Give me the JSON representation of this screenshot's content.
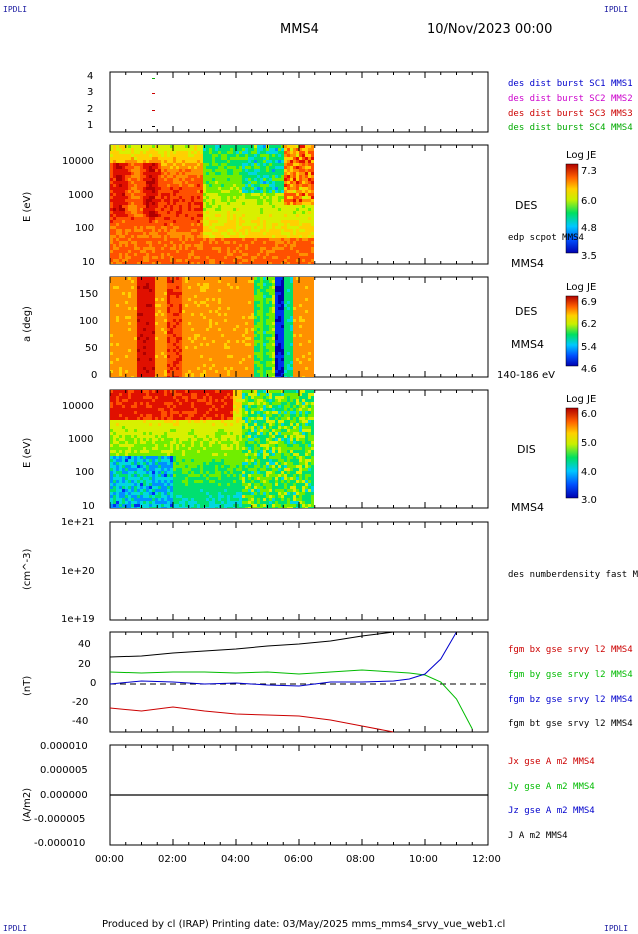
{
  "header": {
    "corner_tl": "IPDLI",
    "corner_tr": "IPDLI",
    "corner_bl": "IPDLI",
    "corner_br": "IPDLI",
    "spacecraft": "MMS4",
    "date": "10/Nov/2023 00:00"
  },
  "footer": {
    "text": "Produced by cl (IRAP)   Printing date: 03/May/2025   mms_mms4_srvy_vue_web1.cl"
  },
  "chart_data": [
    {
      "type": "scatter",
      "id": "burst",
      "yticks": [
        "1",
        "2",
        "3",
        "4"
      ],
      "legend": [
        {
          "label": "des dist burst SC1 MMS1",
          "color": "#0000cc"
        },
        {
          "label": "des dist burst SC2 MMS2",
          "color": "#cc00cc"
        },
        {
          "label": "des dist burst SC3 MMS3",
          "color": "#cc0000"
        },
        {
          "label": "des dist burst SC4 MMS4",
          "color": "#00aa00"
        }
      ]
    },
    {
      "type": "heatmap",
      "id": "des_energy",
      "ylabel": "E (eV)",
      "yticks": [
        "10000",
        "1000",
        "100",
        "10"
      ],
      "right_label": "DES",
      "right_sub": "edp scpot MMS4",
      "right_bottom": "MMS4",
      "colorbar": {
        "title": "Log JE",
        "ticks": [
          "7.3",
          "6.0",
          "4.8",
          "3.5"
        ]
      }
    },
    {
      "type": "heatmap",
      "id": "des_pitch",
      "ylabel": "a (deg)",
      "yticks": [
        "150",
        "100",
        "50",
        "0"
      ],
      "right_label": "DES",
      "right_sub": "MMS4",
      "right_bottom": "140-186 eV",
      "colorbar": {
        "title": "Log JE",
        "ticks": [
          "6.9",
          "6.2",
          "5.4",
          "4.6"
        ]
      }
    },
    {
      "type": "heatmap",
      "id": "dis_energy",
      "ylabel": "E (eV)",
      "yticks": [
        "10000",
        "1000",
        "100",
        "10"
      ],
      "right_label": "DIS",
      "right_bottom": "MMS4",
      "colorbar": {
        "title": "Log JE",
        "ticks": [
          "6.0",
          "5.0",
          "4.0",
          "3.0"
        ]
      }
    },
    {
      "type": "line",
      "id": "density",
      "ylabel": "(cm^-3)",
      "yticks": [
        "1e+21",
        "1e+20",
        "1e+19"
      ],
      "legend": [
        {
          "label": "des numberdensity fast M",
          "color": "#000000"
        }
      ]
    },
    {
      "type": "line",
      "id": "fgm",
      "ylabel": "(nT)",
      "yticks": [
        "40",
        "20",
        "0",
        "-20",
        "-40"
      ],
      "ylim": [
        -48,
        52
      ],
      "legend": [
        {
          "label": "fgm bx gse srvy l2 MMS4",
          "color": "#cc0000"
        },
        {
          "label": "fgm by gse srvy l2 MMS4",
          "color": "#00bb00"
        },
        {
          "label": "fgm bz gse srvy l2 MMS4",
          "color": "#0000cc"
        },
        {
          "label": "fgm bt gse srvy l2 MMS4",
          "color": "#000000"
        }
      ],
      "x_hours": [
        0,
        1,
        2,
        3,
        4,
        5,
        6,
        7,
        8,
        9,
        9.5,
        10,
        10.5,
        11,
        11.5
      ],
      "series": [
        {
          "color": "#cc0000",
          "values": [
            -24,
            -27,
            -23,
            -27,
            -30,
            -31,
            -32,
            -36,
            -42,
            -50,
            null,
            null,
            null,
            null,
            null
          ]
        },
        {
          "color": "#00bb00",
          "values": [
            12,
            11,
            12,
            12,
            11,
            12,
            10,
            12,
            14,
            12,
            11,
            9,
            2,
            -15,
            -45
          ]
        },
        {
          "color": "#0000cc",
          "values": [
            0,
            3,
            2,
            0,
            1,
            -1,
            -2,
            2,
            2,
            3,
            5,
            10,
            25,
            52,
            null
          ]
        },
        {
          "color": "#000000",
          "values": [
            27,
            28,
            31,
            33,
            35,
            38,
            40,
            43,
            48,
            52,
            null,
            null,
            null,
            null,
            null
          ]
        }
      ]
    },
    {
      "type": "line",
      "id": "current",
      "ylabel": "(A/m2)",
      "yticks": [
        "0.000010",
        "0.000005",
        "0.000000",
        "-0.000005",
        "-0.000010"
      ],
      "xticks": [
        "00:00",
        "02:00",
        "04:00",
        "06:00",
        "08:00",
        "10:00",
        "12:00"
      ],
      "legend": [
        {
          "label": "Jx gse A m2 MMS4",
          "color": "#cc0000"
        },
        {
          "label": "Jy gse A m2 MMS4",
          "color": "#00bb00"
        },
        {
          "label": "Jz gse A m2 MMS4",
          "color": "#0000cc"
        },
        {
          "label": "J A m2 MMS4",
          "color": "#000000"
        }
      ]
    }
  ]
}
